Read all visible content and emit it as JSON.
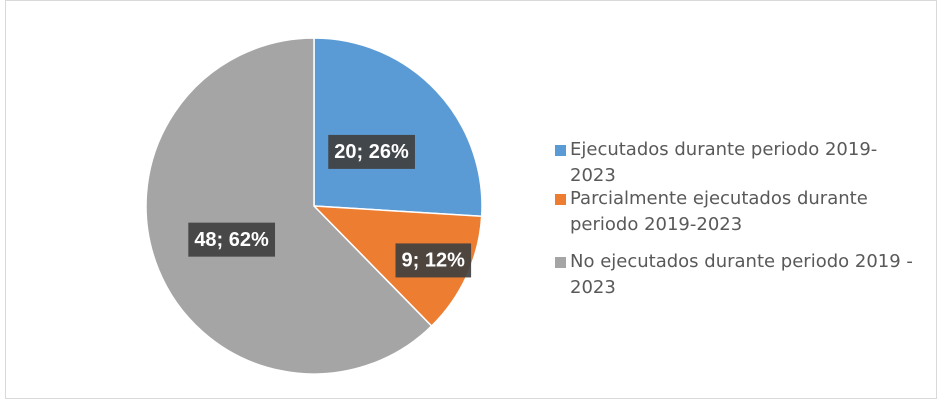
{
  "chart_data": {
    "type": "pie",
    "categories": [
      "Ejecutados durante periodo 2019-2023",
      "Parcialmente ejecutados durante periodo 2019-2023",
      "No ejecutados durante periodo 2019 - 2023"
    ],
    "values": [
      20,
      9,
      48
    ],
    "value_labels": [
      "20; 26%",
      "9; 12%",
      "48; 62%"
    ],
    "colors": [
      "#5b9bd5",
      "#ed7d31",
      "#a5a5a5"
    ],
    "legend": "right"
  }
}
